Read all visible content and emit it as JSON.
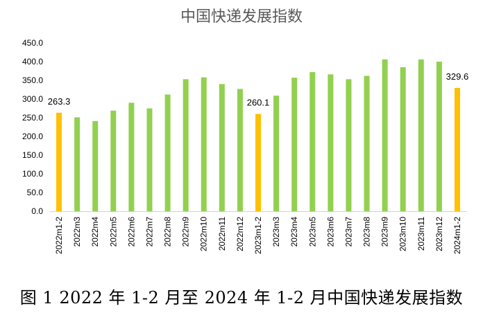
{
  "chart_data": {
    "type": "bar",
    "title": "中国快递发展指数",
    "caption": "图 1 2022 年 1-2 月至 2024 年 1-2 月中国快递发展指数",
    "categories": [
      "2022m1-2",
      "2022m3",
      "2022m4",
      "2022m5",
      "2022m6",
      "2022m7",
      "2022m8",
      "2022m9",
      "2022m10",
      "2022m11",
      "2022m12",
      "2023m1-2",
      "2023m3",
      "2023m4",
      "2023m5",
      "2023m6",
      "2023m7",
      "2023m8",
      "2023m9",
      "2023m10",
      "2023m11",
      "2023m12",
      "2024m1-2"
    ],
    "values": [
      263.3,
      251,
      241,
      269,
      290,
      275,
      312,
      353,
      358,
      340,
      327,
      260.1,
      309,
      357,
      372,
      366,
      353,
      362,
      406,
      385,
      406,
      400,
      329.6
    ],
    "highlight": [
      true,
      false,
      false,
      false,
      false,
      false,
      false,
      false,
      false,
      false,
      false,
      true,
      false,
      false,
      false,
      false,
      false,
      false,
      false,
      false,
      false,
      false,
      true
    ],
    "data_labels": {
      "0": "263.3",
      "11": "260.1",
      "22": "329.6"
    },
    "yticks": [
      "0.0",
      "50.0",
      "100.0",
      "150.0",
      "200.0",
      "250.0",
      "300.0",
      "350.0",
      "400.0",
      "450.0"
    ],
    "ylim": [
      0,
      450
    ],
    "grid": false,
    "legend": "none",
    "colors": {
      "bar": "#92D050",
      "highlight": "#FFC000"
    }
  }
}
